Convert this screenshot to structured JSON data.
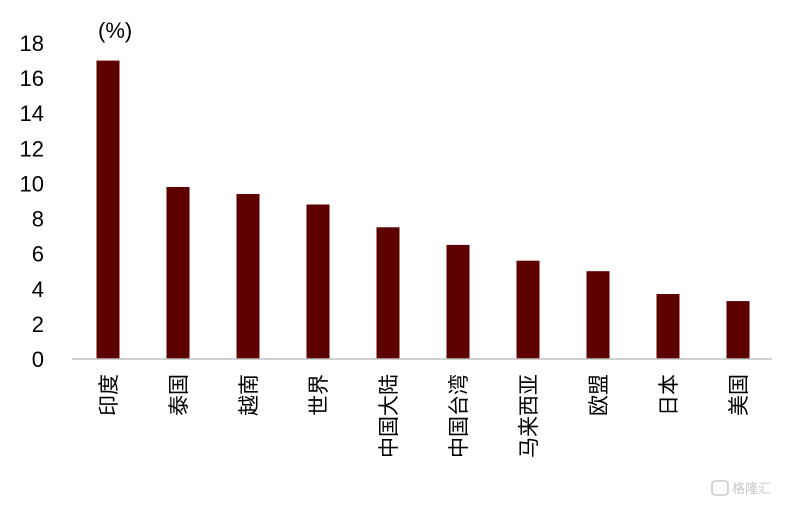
{
  "chart_data": {
    "type": "bar",
    "title": "",
    "xlabel": "",
    "ylabel": "",
    "unit_label": "(%)",
    "categories": [
      "印度",
      "泰国",
      "越南",
      "世界",
      "中国大陆",
      "中国台湾",
      "马来西亚",
      "欧盟",
      "日本",
      "美国"
    ],
    "values": [
      17.0,
      9.8,
      9.4,
      8.8,
      7.5,
      6.5,
      5.6,
      5.0,
      3.7,
      3.3
    ],
    "ylim": [
      0,
      18
    ],
    "yticks": [
      0,
      2,
      4,
      6,
      8,
      10,
      12,
      14,
      16,
      18
    ],
    "grid": false,
    "legend": "none",
    "bar_color": "#5c0000",
    "axis_color": "#bfbfbf"
  },
  "watermark": {
    "text": "格隆汇"
  }
}
